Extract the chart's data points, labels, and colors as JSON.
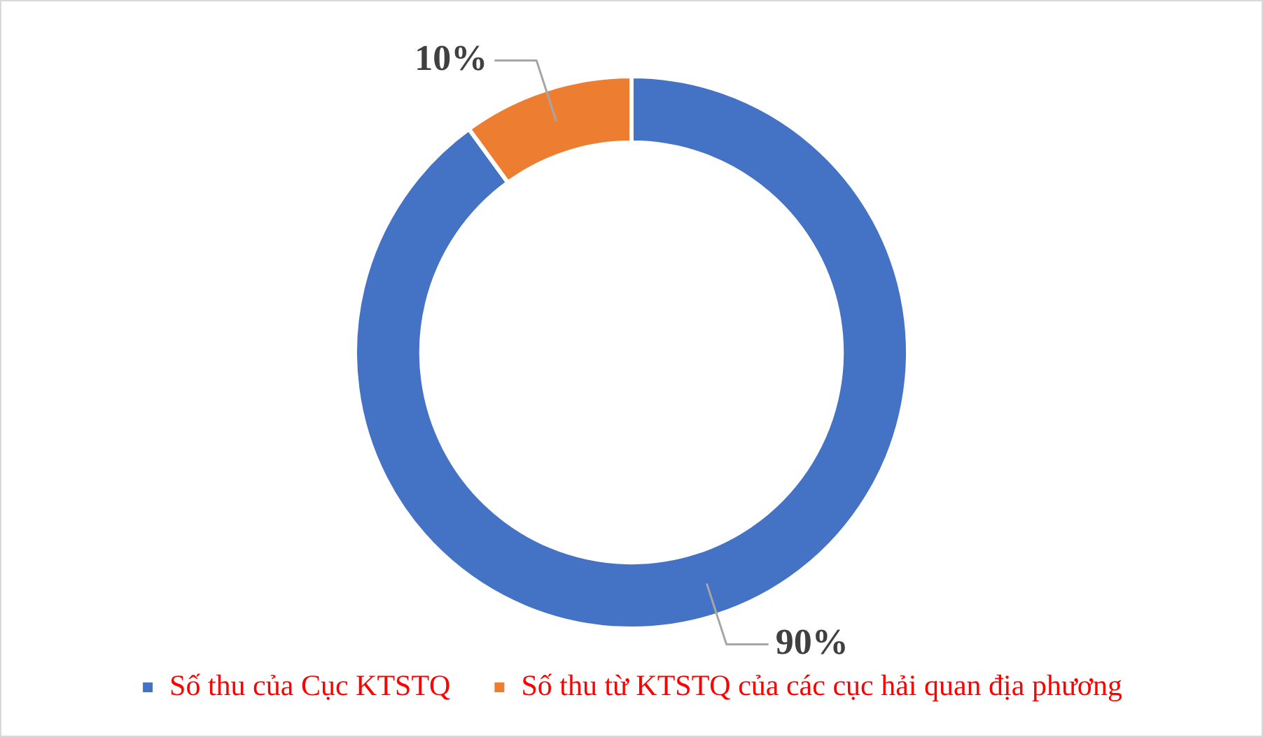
{
  "chart_data": {
    "type": "donut",
    "categories": [
      "Số thu của Cục KTSTQ",
      "Số thu từ KTSTQ của các cục hải quan địa phương"
    ],
    "values": [
      90,
      10
    ],
    "colors": [
      "#4472c4",
      "#ed7d31"
    ],
    "value_labels": [
      "90%",
      "10%"
    ],
    "legend": "bottom"
  }
}
